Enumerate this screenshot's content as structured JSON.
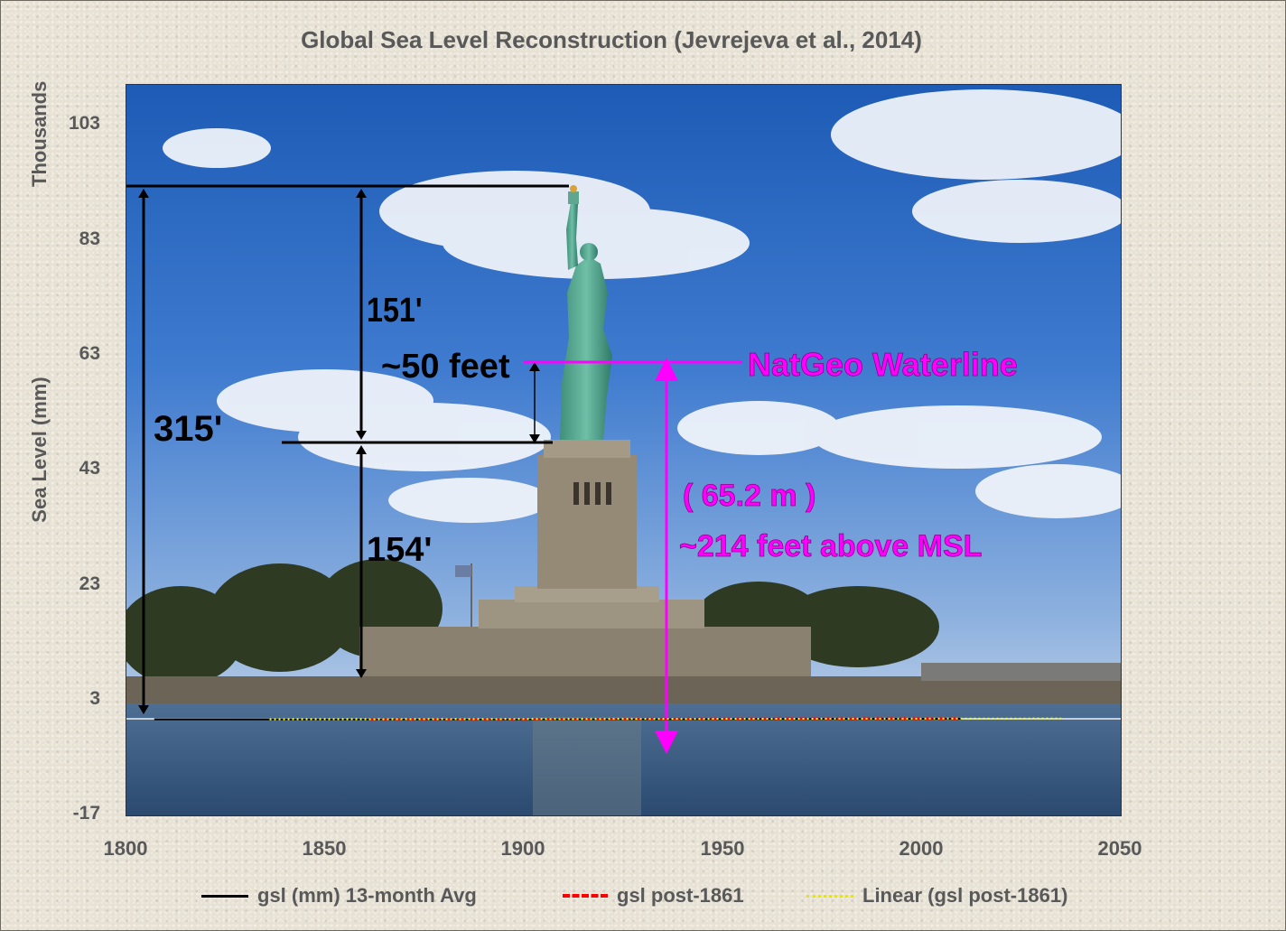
{
  "chart_data": {
    "type": "line",
    "title": "Global Sea Level Reconstruction (Jevrejeva et al., 2014)",
    "ylabel": "Sea Level (mm)",
    "ylabel_units": "Thousands",
    "xlim": [
      1800,
      2050
    ],
    "ylim": [
      -17,
      113
    ],
    "x_ticks": [
      "1800",
      "1850",
      "1900",
      "1950",
      "2000",
      "2050"
    ],
    "y_ticks": [
      "103",
      "83",
      "63",
      "43",
      "23",
      "3",
      "-17"
    ],
    "grid": false,
    "legend_position": "bottom",
    "background_image": "Statue of Liberty photograph",
    "series": [
      {
        "name": "gsl (mm) 13-month Avg",
        "color": "#000000",
        "style": "solid",
        "x": [
          1807,
          1850,
          1900,
          1950,
          2000,
          2010
        ],
        "y": [
          0.1,
          0.1,
          0.1,
          0.15,
          0.2,
          0.2
        ]
      },
      {
        "name": "gsl post-1861",
        "color": "#ff0000",
        "style": "dashed",
        "x": [
          1861,
          1900,
          1950,
          2000,
          2010
        ],
        "y": [
          0.1,
          0.1,
          0.15,
          0.2,
          0.2
        ]
      },
      {
        "name": "Linear (gsl post-1861)",
        "color": "#ffff00",
        "style": "dotted",
        "x": [
          1836,
          2035
        ],
        "y": [
          0.1,
          0.25
        ]
      }
    ],
    "annotations": {
      "a151": "151'",
      "a50": "~50 feet",
      "a315": "315'",
      "a154": "154'",
      "natgeo": "NatGeo Waterline",
      "meters": "( 65.2 m )",
      "feet": "~214 feet above MSL"
    }
  },
  "colors": {
    "magenta": "#ff00ff",
    "axis_text": "#595959",
    "background": "#e7e1d4"
  }
}
